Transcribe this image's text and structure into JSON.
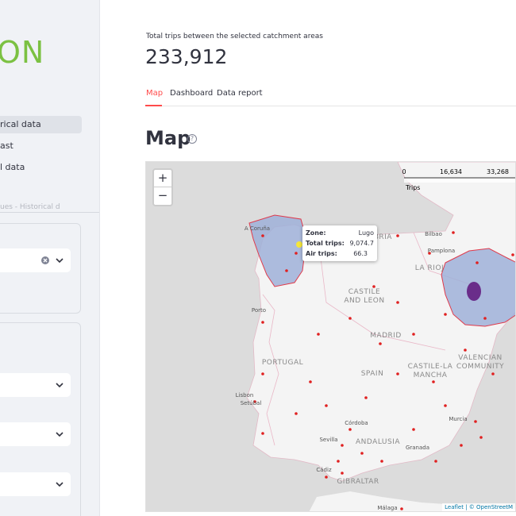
{
  "sidebar": {
    "logo": "ON",
    "menu": [
      "rical data",
      "ast",
      "l data"
    ],
    "section_label": "ues - Historical d"
  },
  "header": {
    "caption": "Total trips between the selected catchment areas",
    "total": "233,912"
  },
  "tabs": [
    "Map",
    "Dashboard",
    "Data report"
  ],
  "map": {
    "title": "Map",
    "help": "?",
    "zoom_in": "+",
    "zoom_out": "−",
    "legend": {
      "ticks": [
        "0",
        "16,634",
        "33,268"
      ],
      "label": "Trips"
    },
    "tooltip": {
      "rows": [
        [
          "Zone:",
          "Lugo"
        ],
        [
          "Total trips:",
          "9,074.7"
        ],
        [
          "Air trips:",
          "66.3"
        ]
      ]
    },
    "places": [
      "A Coruña",
      "CANTABRIA",
      "Bilbao",
      "Pamplona",
      "LA RIOJ",
      "CASTILE",
      "AND LEON",
      "MADRID",
      "PORTUGAL",
      "SPAIN",
      "CASTILE-LA",
      "MANCHA",
      "VALENCIAN",
      "COMMUNITY",
      "Porto",
      "Lisbon",
      "Setúbal",
      "Córdoba",
      "Sevilla",
      "ANDALUSIA",
      "Granada",
      "Murcia",
      "Cádiz",
      "GIBRALTAR",
      "Málaga"
    ],
    "attribution": "Leaflet | © OpenStreetM"
  }
}
